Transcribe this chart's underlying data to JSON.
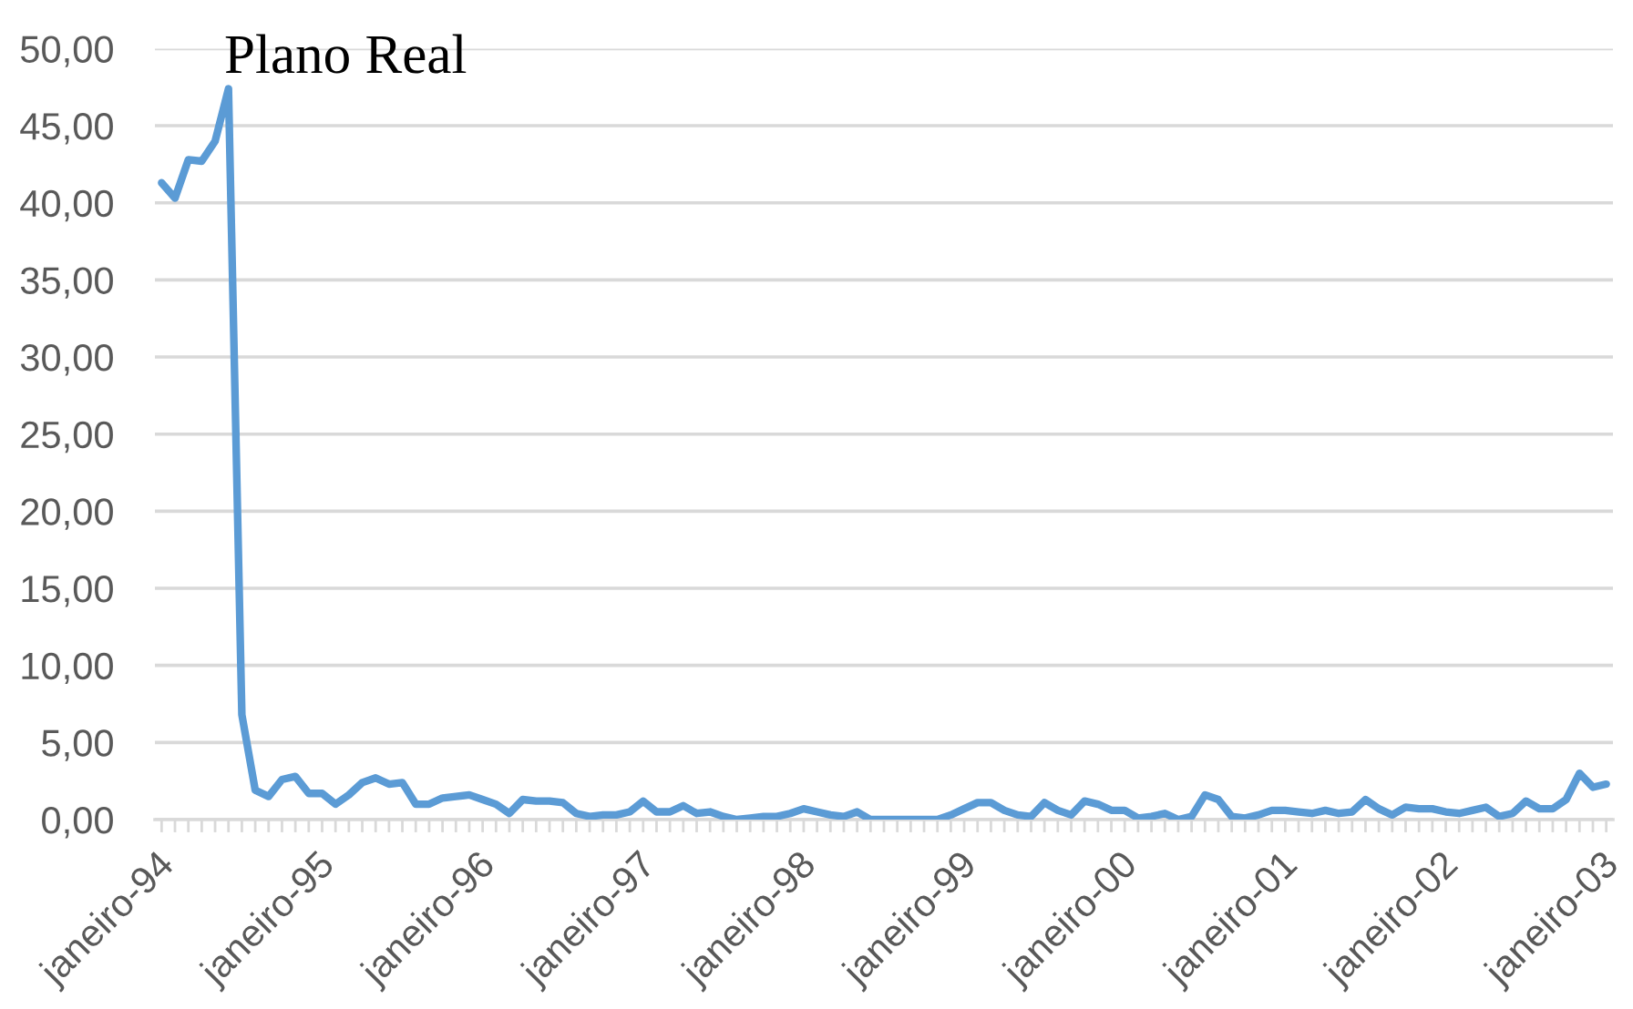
{
  "chart_data": {
    "type": "line",
    "categories": [
      "janeiro-94",
      null,
      null,
      null,
      null,
      null,
      null,
      null,
      null,
      null,
      null,
      null,
      "janeiro-95",
      null,
      null,
      null,
      null,
      null,
      null,
      null,
      null,
      null,
      null,
      null,
      "janeiro-96",
      null,
      null,
      null,
      null,
      null,
      null,
      null,
      null,
      null,
      null,
      null,
      "janeiro-97",
      null,
      null,
      null,
      null,
      null,
      null,
      null,
      null,
      null,
      null,
      null,
      "janeiro-98",
      null,
      null,
      null,
      null,
      null,
      null,
      null,
      null,
      null,
      null,
      null,
      "janeiro-99",
      null,
      null,
      null,
      null,
      null,
      null,
      null,
      null,
      null,
      null,
      null,
      "janeiro-00",
      null,
      null,
      null,
      null,
      null,
      null,
      null,
      null,
      null,
      null,
      null,
      "janeiro-01",
      null,
      null,
      null,
      null,
      null,
      null,
      null,
      null,
      null,
      null,
      null,
      "janeiro-02",
      null,
      null,
      null,
      null,
      null,
      null,
      null,
      null,
      null,
      null,
      null,
      "janeiro-03"
    ],
    "series": [
      {
        "color": "#5b9bd5",
        "values": [
          41.3,
          40.3,
          42.8,
          42.7,
          44.0,
          47.4,
          6.8,
          1.9,
          1.5,
          2.6,
          2.8,
          1.7,
          1.7,
          1.0,
          1.6,
          2.4,
          2.7,
          2.3,
          2.4,
          1.0,
          1.0,
          1.4,
          1.5,
          1.6,
          1.3,
          1.0,
          0.4,
          1.3,
          1.2,
          1.2,
          1.1,
          0.4,
          0.2,
          0.3,
          0.3,
          0.5,
          1.2,
          0.5,
          0.5,
          0.9,
          0.4,
          0.5,
          0.2,
          0.0,
          0.1,
          0.2,
          0.2,
          0.4,
          0.7,
          0.5,
          0.3,
          0.2,
          0.5,
          0.0,
          0.0,
          0.0,
          0.0,
          0.0,
          0.0,
          0.3,
          0.7,
          1.1,
          1.1,
          0.6,
          0.3,
          0.2,
          1.1,
          0.6,
          0.3,
          1.2,
          1.0,
          0.6,
          0.6,
          0.1,
          0.2,
          0.4,
          0.0,
          0.2,
          1.6,
          1.3,
          0.2,
          0.1,
          0.3,
          0.6,
          0.6,
          0.5,
          0.4,
          0.6,
          0.4,
          0.5,
          1.3,
          0.7,
          0.3,
          0.8,
          0.7,
          0.7,
          0.5,
          0.4,
          0.6,
          0.8,
          0.2,
          0.4,
          1.2,
          0.7,
          0.7,
          1.3,
          3.0,
          2.1,
          2.3
        ]
      }
    ],
    "ylim": [
      0,
      50
    ],
    "yticks": [
      {
        "value": 0,
        "label": "0,00"
      },
      {
        "value": 5,
        "label": "5,00"
      },
      {
        "value": 10,
        "label": "10,00"
      },
      {
        "value": 15,
        "label": "15,00"
      },
      {
        "value": 20,
        "label": "20,00"
      },
      {
        "value": 25,
        "label": "25,00"
      },
      {
        "value": 30,
        "label": "30,00"
      },
      {
        "value": 35,
        "label": "35,00"
      },
      {
        "value": 40,
        "label": "40,00"
      },
      {
        "value": 45,
        "label": "45,00"
      },
      {
        "value": 50,
        "label": "50,00"
      }
    ],
    "grid": "y",
    "annotations": [
      "Plano Real"
    ]
  }
}
